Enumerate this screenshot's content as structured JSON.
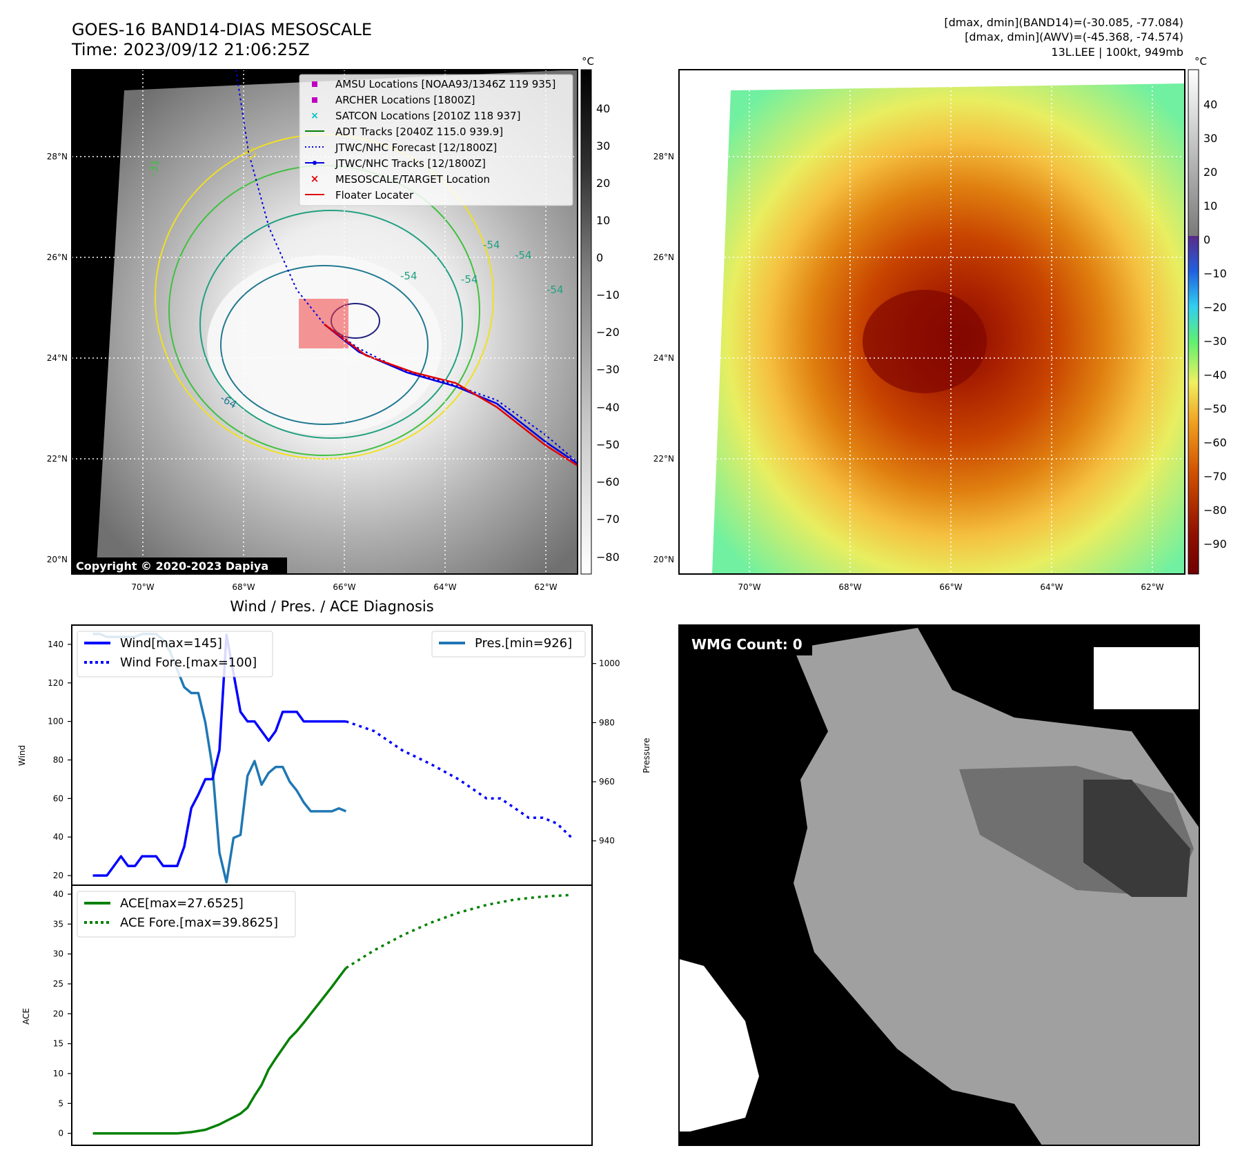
{
  "header": {
    "title_line1": "GOES-16 BAND14-DIAS MESOSCALE",
    "title_line2": "Time: 2023/09/12 21:06:25Z",
    "info_line1": "[dmax, dmin](BAND14)=(-30.085, -77.084)",
    "info_line2": "[dmax, dmin](AWV)=(-45.368, -74.574)",
    "info_line3": "13L.LEE | 100kt, 949mb"
  },
  "maps": {
    "lat_ticks": [
      "28°N",
      "26°N",
      "24°N",
      "22°N",
      "20°N"
    ],
    "lon_ticks": [
      "70°W",
      "68°W",
      "66°W",
      "64°W",
      "62°W"
    ],
    "copyright": "Copyright © 2020-2023 Dapiya",
    "colorbar_unit": "°C",
    "gray_colorbar_ticks": [
      "40",
      "30",
      "20",
      "10",
      "0",
      "−10",
      "−20",
      "−30",
      "−40",
      "−50",
      "−60",
      "−70",
      "−80"
    ],
    "color_colorbar_ticks": [
      "40",
      "30",
      "20",
      "10",
      "0",
      "−10",
      "−20",
      "−30",
      "−40",
      "−50",
      "−60",
      "−70",
      "−80",
      "−90"
    ],
    "contour_labels": [
      "-31",
      "-31",
      "-54",
      "-54",
      "-54",
      "-54",
      "-54",
      "-64"
    ],
    "legend": [
      {
        "label": "AMSU Locations [NOAA93/1346Z 119 935]",
        "color": "#c000c0"
      },
      {
        "label": "ARCHER Locations [1800Z]",
        "color": "#c000c0"
      },
      {
        "label": "SATCON Locations [2010Z 118 937]",
        "color": "#00c0c0"
      },
      {
        "label": "ADT Tracks [2040Z 115.0 939.9]",
        "color": "#008000"
      },
      {
        "label": "JTWC/NHC Forecast [12/1800Z]",
        "color": "#0000e0"
      },
      {
        "label": "JTWC/NHC Tracks [12/1800Z]",
        "color": "#0000e0"
      },
      {
        "label": "MESOSCALE/TARGET Location",
        "color": "#e00000"
      },
      {
        "label": "Floater Locater",
        "color": "#e00000"
      }
    ]
  },
  "diagnosis": {
    "title": "Wind / Pres. / ACE Diagnosis",
    "wind_ylabel": "Wind",
    "pressure_ylabel": "Pressure",
    "ace_ylabel": "ACE",
    "wind_legend": [
      "Wind[max=145]",
      "Wind Fore.[max=100]"
    ],
    "pres_legend": [
      "Pres.[min=926]"
    ],
    "ace_legend": [
      "ACE[max=27.6525]",
      "ACE Fore.[max=39.8625]"
    ]
  },
  "wmg": {
    "label": "WMG Count: 0"
  },
  "chart_data": [
    {
      "type": "line",
      "name": "wind",
      "ylim": [
        15,
        150
      ],
      "yticks": [
        20,
        40,
        60,
        80,
        100,
        120,
        140
      ],
      "x": [
        0,
        1,
        2,
        3,
        4,
        5,
        6,
        7,
        8,
        9,
        10,
        11,
        12,
        13,
        14,
        15,
        16,
        17,
        18,
        19,
        20,
        21,
        22,
        23,
        24,
        25,
        26,
        27,
        28,
        29,
        30,
        31,
        32,
        33,
        34,
        35,
        36
      ],
      "series": [
        {
          "name": "Wind[max=145]",
          "color": "#0000ff",
          "values": [
            20,
            20,
            20,
            25,
            30,
            25,
            25,
            30,
            30,
            30,
            25,
            25,
            25,
            35,
            55,
            62,
            70,
            70,
            85,
            145,
            125,
            105,
            100,
            100,
            95,
            90,
            95,
            105,
            105,
            105,
            100,
            100,
            100,
            100,
            100,
            100,
            100
          ]
        }
      ],
      "forecast_x": [
        36,
        40,
        44,
        48,
        52,
        56,
        58,
        60,
        62,
        64,
        66,
        68
      ],
      "forecast": {
        "name": "Wind Fore.[max=100]",
        "color": "#0000ff",
        "values": [
          100,
          95,
          85,
          78,
          70,
          60,
          60,
          55,
          50,
          50,
          47,
          40
        ]
      }
    },
    {
      "type": "line",
      "name": "pressure",
      "ylim": [
        925,
        1013
      ],
      "yticks": [
        940,
        960,
        980,
        1000
      ],
      "x": [
        0,
        1,
        2,
        3,
        4,
        5,
        6,
        7,
        8,
        9,
        10,
        11,
        12,
        13,
        14,
        15,
        16,
        17,
        18,
        19,
        20,
        21,
        22,
        23,
        24,
        25,
        26,
        27,
        28,
        29,
        30,
        31,
        32,
        33,
        34,
        35,
        36
      ],
      "series": [
        {
          "name": "Pres.[min=926]",
          "color": "#1f77b4",
          "values": [
            1010,
            1010,
            1009,
            1009,
            1009,
            1009,
            1009,
            1010,
            1010,
            1010,
            1008,
            1004,
            998,
            992,
            990,
            990,
            980,
            965,
            936,
            926,
            941,
            942,
            962,
            967,
            959,
            963,
            965,
            965,
            960,
            957,
            953,
            950,
            950,
            950,
            950,
            951,
            950
          ]
        }
      ]
    },
    {
      "type": "line",
      "name": "ace",
      "ylim": [
        -2,
        41.5
      ],
      "yticks": [
        0,
        5,
        10,
        15,
        20,
        25,
        30,
        35,
        40
      ],
      "x": [
        0,
        2,
        4,
        6,
        8,
        10,
        12,
        14,
        16,
        18,
        19,
        20,
        21,
        22,
        23,
        24,
        25,
        26,
        27,
        28,
        29,
        30,
        31,
        32,
        33,
        34,
        35,
        36
      ],
      "series": [
        {
          "name": "ACE[max=27.6525]",
          "color": "#008000",
          "values": [
            0,
            0,
            0,
            0,
            0,
            0,
            0,
            0.2,
            0.6,
            1.5,
            2.1,
            2.7,
            3.3,
            4.3,
            6.3,
            8.1,
            10.7,
            12.5,
            14.2,
            15.9,
            17.1,
            18.5,
            20.0,
            21.5,
            23.0,
            24.5,
            26.1,
            27.6525
          ]
        }
      ],
      "forecast_x": [
        36,
        40,
        44,
        48,
        52,
        56,
        60,
        64,
        68
      ],
      "forecast": {
        "name": "ACE Fore.[max=39.8625]",
        "color": "#008000",
        "values": [
          27.6525,
          30.6,
          33.1,
          35.2,
          36.9,
          38.2,
          39.1,
          39.6,
          39.8625
        ]
      }
    }
  ]
}
